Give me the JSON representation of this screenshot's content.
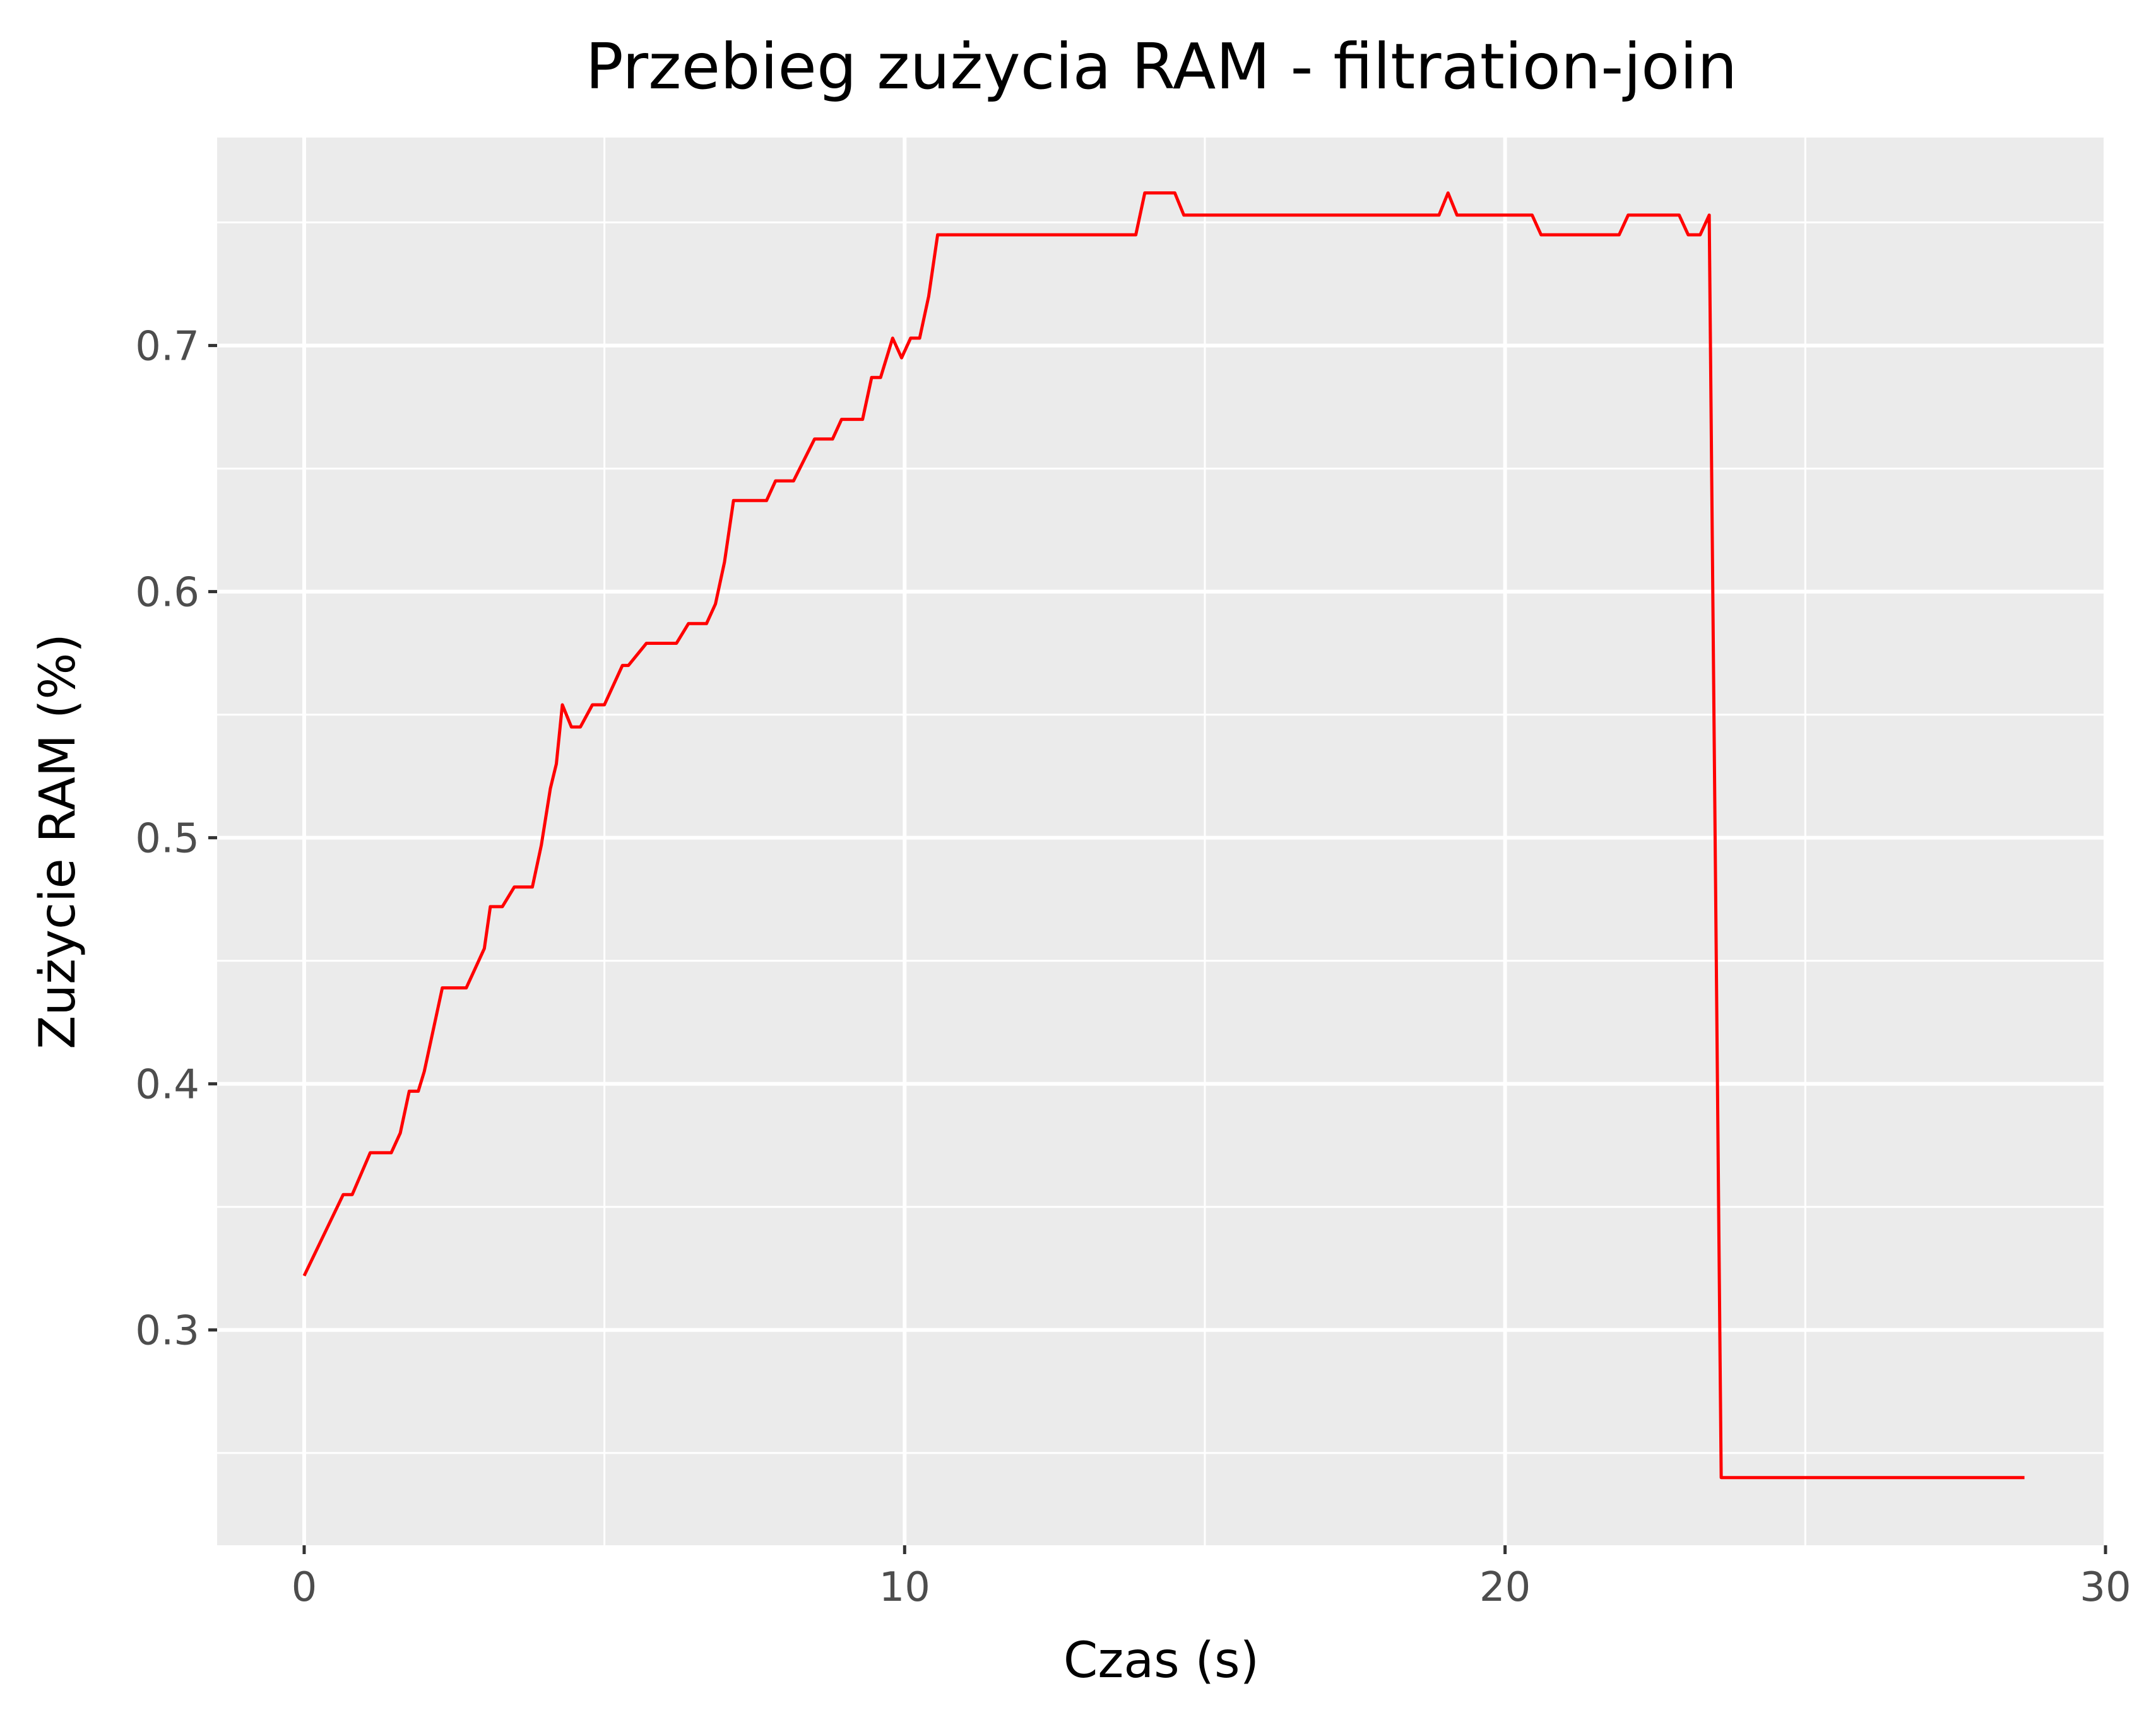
{
  "chart_data": {
    "type": "line",
    "title": "Przebieg zużycia RAM - filtration-join",
    "xlabel": "Czas (s)",
    "ylabel": "Zużycie RAM (%)",
    "xlim": [
      -1.45,
      30
    ],
    "ylim": [
      0.2125,
      0.7845
    ],
    "x_ticks": [
      0,
      10,
      20,
      30
    ],
    "x_tick_labels": [
      "0",
      "10",
      "20",
      "30"
    ],
    "y_ticks": [
      0.3,
      0.4,
      0.5,
      0.6,
      0.7
    ],
    "y_tick_labels": [
      "0.3",
      "0.4",
      "0.5",
      "0.6",
      "0.7"
    ],
    "x_minor_ticks": [
      5,
      15,
      25
    ],
    "y_minor_ticks": [
      0.25,
      0.35,
      0.45,
      0.55,
      0.65,
      0.75
    ],
    "grid": true,
    "background": "#ebebeb",
    "series": [
      {
        "color": "#ff0000",
        "x": [
          0,
          0.65,
          0.8,
          1.1,
          1.45,
          1.6,
          1.75,
          1.9,
          2.0,
          2.3,
          2.4,
          2.7,
          3.0,
          3.1,
          3.3,
          3.5,
          3.8,
          3.95,
          4.1,
          4.2,
          4.3,
          4.45,
          4.6,
          4.8,
          5.0,
          5.3,
          5.4,
          5.7,
          5.8,
          6.2,
          6.4,
          6.7,
          6.85,
          7.0,
          7.15,
          7.7,
          7.85,
          8.15,
          8.5,
          8.8,
          8.95,
          9.3,
          9.45,
          9.6,
          9.8,
          9.95,
          10.1,
          10.25,
          10.4,
          10.55,
          13.85,
          14.0,
          14.5,
          14.65,
          18.9,
          19.05,
          19.2,
          20.45,
          20.6,
          21.9,
          22.05,
          22.9,
          23.05,
          23.25,
          23.4,
          23.6,
          28.65
        ],
        "y": [
          0.322,
          0.355,
          0.355,
          0.372,
          0.372,
          0.38,
          0.397,
          0.397,
          0.405,
          0.439,
          0.439,
          0.439,
          0.455,
          0.472,
          0.472,
          0.48,
          0.48,
          0.497,
          0.52,
          0.53,
          0.554,
          0.545,
          0.545,
          0.554,
          0.554,
          0.57,
          0.57,
          0.579,
          0.579,
          0.579,
          0.587,
          0.587,
          0.595,
          0.612,
          0.637,
          0.637,
          0.645,
          0.645,
          0.662,
          0.662,
          0.67,
          0.67,
          0.687,
          0.687,
          0.703,
          0.695,
          0.703,
          0.703,
          0.72,
          0.745,
          0.745,
          0.762,
          0.762,
          0.753,
          0.753,
          0.762,
          0.753,
          0.753,
          0.745,
          0.745,
          0.753,
          0.753,
          0.745,
          0.745,
          0.753,
          0.24,
          0.24
        ]
      }
    ]
  }
}
